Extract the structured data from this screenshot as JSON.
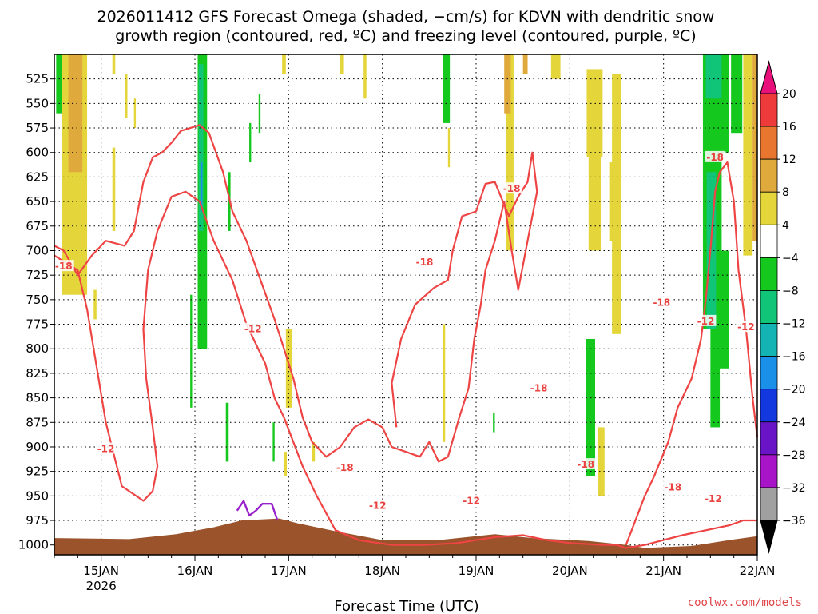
{
  "title": {
    "line1": "2026011412 GFS Forecast Omega (shaded, −cm/s) for KDVN with dendritic snow",
    "line2": "growth region (contoured, red, ºC) and freezing level (contoured, purple, ºC)"
  },
  "xlabel": "Forecast Time (UTC)",
  "credit": "coolwx.com/models",
  "colors": {
    "dgz_contour": "#ee4444",
    "freezing_contour": "#9922cc",
    "terrain": "#9a532a",
    "grid": "#000000"
  },
  "chart_data": {
    "type": "heatmap",
    "title": "2026011412 GFS Forecast Omega (shaded, −cm/s) for KDVN with dendritic snow growth region (contoured, red, ºC) and freezing level (contoured, purple, ºC)",
    "xlabel": "Forecast Time (UTC)",
    "ylabel": "",
    "x_range_days": [
      14.5,
      22.0
    ],
    "y_range_hpa": [
      500,
      1010
    ],
    "y_scale": "linear (pressure, inverted)",
    "grid": true,
    "x_ticks": [
      {
        "value": 15,
        "label": "15JAN",
        "sublabel": "2026"
      },
      {
        "value": 16,
        "label": "16JAN"
      },
      {
        "value": 17,
        "label": "17JAN"
      },
      {
        "value": 18,
        "label": "18JAN"
      },
      {
        "value": 19,
        "label": "19JAN"
      },
      {
        "value": 20,
        "label": "20JAN"
      },
      {
        "value": 21,
        "label": "21JAN"
      },
      {
        "value": 22,
        "label": "22JAN"
      }
    ],
    "y_ticks": [
      525,
      550,
      575,
      600,
      625,
      650,
      675,
      700,
      725,
      750,
      775,
      800,
      825,
      850,
      875,
      900,
      925,
      950,
      975,
      1000
    ],
    "colorbar": {
      "labels": [
        "20",
        "16",
        "12",
        "8",
        "4",
        "−4",
        "−8",
        "−12",
        "−16",
        "−20",
        "−24",
        "−28",
        "−32",
        "−36"
      ],
      "bins": [
        {
          "low": 20,
          "high": 24,
          "color": "#e8107a"
        },
        {
          "low": 16,
          "high": 20,
          "color": "#ee3a3a"
        },
        {
          "low": 12,
          "high": 16,
          "color": "#e8762e"
        },
        {
          "low": 8,
          "high": 12,
          "color": "#e0a93c"
        },
        {
          "low": 4,
          "high": 8,
          "color": "#e4d63a"
        },
        {
          "low": -4,
          "high": 4,
          "color": "#ffffff"
        },
        {
          "low": -8,
          "high": -4,
          "color": "#14c81e"
        },
        {
          "low": -12,
          "high": -8,
          "color": "#10c478"
        },
        {
          "low": -16,
          "high": -12,
          "color": "#14b4b4"
        },
        {
          "low": -20,
          "high": -16,
          "color": "#1a90e8"
        },
        {
          "low": -24,
          "high": -20,
          "color": "#1438e0"
        },
        {
          "low": -28,
          "high": -24,
          "color": "#6a14c8"
        },
        {
          "low": -32,
          "high": -28,
          "color": "#a814c8"
        },
        {
          "low": -36,
          "high": -32,
          "color": "#a0a0a0"
        },
        {
          "low": -40,
          "high": -36,
          "color": "#000000"
        }
      ]
    },
    "omega_cells": [
      {
        "t0": 14.52,
        "t1": 14.6,
        "p0": 500,
        "p1": 560,
        "value": -6
      },
      {
        "t0": 14.58,
        "t1": 14.85,
        "p0": 500,
        "p1": 745,
        "value": 5
      },
      {
        "t0": 14.65,
        "t1": 14.8,
        "p0": 500,
        "p1": 620,
        "value": 9
      },
      {
        "t0": 15.12,
        "t1": 15.15,
        "p0": 500,
        "p1": 520,
        "value": 5
      },
      {
        "t0": 15.12,
        "t1": 15.15,
        "p0": 595,
        "p1": 680,
        "value": 5
      },
      {
        "t0": 14.92,
        "t1": 14.95,
        "p0": 740,
        "p1": 770,
        "value": 5
      },
      {
        "t0": 15.25,
        "t1": 15.28,
        "p0": 520,
        "p1": 565,
        "value": 5
      },
      {
        "t0": 15.95,
        "t1": 15.97,
        "p0": 745,
        "p1": 860,
        "value": -6
      },
      {
        "t0": 16.03,
        "t1": 16.13,
        "p0": 500,
        "p1": 800,
        "value": -6
      },
      {
        "t0": 16.04,
        "t1": 16.09,
        "p0": 510,
        "p1": 680,
        "value": -12
      },
      {
        "t0": 16.06,
        "t1": 16.08,
        "p0": 610,
        "p1": 660,
        "value": -18
      },
      {
        "t0": 16.35,
        "t1": 16.38,
        "p0": 620,
        "p1": 680,
        "value": -6
      },
      {
        "t0": 16.33,
        "t1": 16.36,
        "p0": 855,
        "p1": 915,
        "value": -6
      },
      {
        "t0": 15.35,
        "t1": 15.37,
        "p0": 545,
        "p1": 575,
        "value": 5
      },
      {
        "t0": 16.68,
        "t1": 16.7,
        "p0": 540,
        "p1": 580,
        "value": -6
      },
      {
        "t0": 16.58,
        "t1": 16.6,
        "p0": 570,
        "p1": 610,
        "value": -6
      },
      {
        "t0": 16.93,
        "t1": 16.97,
        "p0": 500,
        "p1": 520,
        "value": 5
      },
      {
        "t0": 16.97,
        "t1": 17.04,
        "p0": 780,
        "p1": 860,
        "value": 5
      },
      {
        "t0": 16.83,
        "t1": 16.85,
        "p0": 875,
        "p1": 915,
        "value": -6
      },
      {
        "t0": 16.95,
        "t1": 16.98,
        "p0": 905,
        "p1": 930,
        "value": 5
      },
      {
        "t0": 17.25,
        "t1": 17.28,
        "p0": 895,
        "p1": 915,
        "value": 5
      },
      {
        "t0": 17.55,
        "t1": 17.59,
        "p0": 500,
        "p1": 520,
        "value": 5
      },
      {
        "t0": 17.8,
        "t1": 17.83,
        "p0": 500,
        "p1": 545,
        "value": 5
      },
      {
        "t0": 18.65,
        "t1": 18.72,
        "p0": 500,
        "p1": 570,
        "value": -6
      },
      {
        "t0": 18.65,
        "t1": 18.67,
        "p0": 775,
        "p1": 895,
        "value": 5
      },
      {
        "t0": 18.7,
        "t1": 18.72,
        "p0": 575,
        "p1": 615,
        "value": 5
      },
      {
        "t0": 19.32,
        "t1": 19.4,
        "p0": 500,
        "p1": 700,
        "value": 5
      },
      {
        "t0": 19.3,
        "t1": 19.37,
        "p0": 500,
        "p1": 560,
        "value": 9
      },
      {
        "t0": 19.5,
        "t1": 19.55,
        "p0": 500,
        "p1": 520,
        "value": 9
      },
      {
        "t0": 19.18,
        "t1": 19.2,
        "p0": 865,
        "p1": 885,
        "value": -6
      },
      {
        "t0": 19.8,
        "t1": 19.9,
        "p0": 500,
        "p1": 525,
        "value": 5
      },
      {
        "t0": 20.18,
        "t1": 20.35,
        "p0": 515,
        "p1": 605,
        "value": 5
      },
      {
        "t0": 20.2,
        "t1": 20.33,
        "p0": 605,
        "p1": 700,
        "value": 5
      },
      {
        "t0": 20.45,
        "t1": 20.55,
        "p0": 520,
        "p1": 610,
        "value": 5
      },
      {
        "t0": 20.42,
        "t1": 20.55,
        "p0": 610,
        "p1": 690,
        "value": 5
      },
      {
        "t0": 20.45,
        "t1": 20.55,
        "p0": 690,
        "p1": 785,
        "value": 5
      },
      {
        "t0": 20.17,
        "t1": 20.27,
        "p0": 790,
        "p1": 930,
        "value": -6
      },
      {
        "t0": 20.3,
        "t1": 20.37,
        "p0": 880,
        "p1": 950,
        "value": 5
      },
      {
        "t0": 21.42,
        "t1": 21.7,
        "p0": 500,
        "p1": 600,
        "value": -6
      },
      {
        "t0": 21.45,
        "t1": 21.62,
        "p0": 500,
        "p1": 545,
        "value": -10
      },
      {
        "t0": 21.42,
        "t1": 21.62,
        "p0": 600,
        "p1": 780,
        "value": -6
      },
      {
        "t0": 21.46,
        "t1": 21.56,
        "p0": 620,
        "p1": 780,
        "value": -10
      },
      {
        "t0": 21.5,
        "t1": 21.6,
        "p0": 780,
        "p1": 880,
        "value": -6
      },
      {
        "t0": 21.58,
        "t1": 21.7,
        "p0": 700,
        "p1": 820,
        "value": -6
      },
      {
        "t0": 21.72,
        "t1": 21.84,
        "p0": 500,
        "p1": 580,
        "value": -6
      },
      {
        "t0": 21.85,
        "t1": 21.95,
        "p0": 500,
        "p1": 705,
        "value": 5
      },
      {
        "t0": 21.95,
        "t1": 22.0,
        "p0": 500,
        "p1": 690,
        "value": 9
      }
    ],
    "dgz_contours": [
      {
        "label": "-12",
        "points": [
          [
            14.5,
            705
          ],
          [
            14.75,
            720
          ],
          [
            14.85,
            760
          ],
          [
            15.05,
            875
          ],
          [
            15.22,
            940
          ],
          [
            15.45,
            955
          ],
          [
            15.55,
            945
          ],
          [
            15.6,
            920
          ],
          [
            15.55,
            880
          ],
          [
            15.48,
            830
          ],
          [
            15.45,
            780
          ],
          [
            15.5,
            720
          ],
          [
            15.6,
            680
          ],
          [
            15.75,
            645
          ],
          [
            15.9,
            640
          ],
          [
            16.05,
            650
          ],
          [
            16.2,
            690
          ],
          [
            16.4,
            730
          ],
          [
            16.55,
            775
          ],
          [
            16.75,
            815
          ],
          [
            16.85,
            850
          ],
          [
            16.95,
            870
          ],
          [
            17.05,
            895
          ],
          [
            17.15,
            920
          ],
          [
            17.3,
            950
          ],
          [
            17.5,
            985
          ],
          [
            17.75,
            995
          ],
          [
            18.1,
            1000
          ],
          [
            18.45,
            1000
          ],
          [
            18.8,
            998
          ],
          [
            19.2,
            992
          ],
          [
            19.5,
            990
          ],
          [
            19.75,
            995
          ],
          [
            20.0,
            998
          ],
          [
            20.35,
            1000
          ],
          [
            20.5,
            1000
          ],
          [
            20.6,
            1003
          ],
          [
            20.8,
            1000
          ],
          [
            21.0,
            995
          ],
          [
            21.2,
            990
          ],
          [
            21.45,
            985
          ],
          [
            21.7,
            980
          ],
          [
            21.85,
            975
          ],
          [
            22.0,
            975
          ]
        ]
      },
      {
        "label": "-18",
        "points": [
          [
            14.5,
            695
          ],
          [
            14.6,
            700
          ],
          [
            14.75,
            725
          ],
          [
            14.9,
            705
          ],
          [
            15.05,
            690
          ],
          [
            15.25,
            695
          ],
          [
            15.35,
            680
          ],
          [
            15.45,
            630
          ],
          [
            15.55,
            605
          ],
          [
            15.65,
            600
          ],
          [
            15.75,
            590
          ],
          [
            15.85,
            578
          ],
          [
            15.95,
            575
          ],
          [
            16.05,
            572
          ],
          [
            16.15,
            580
          ],
          [
            16.3,
            620
          ],
          [
            16.4,
            660
          ],
          [
            16.55,
            690
          ],
          [
            16.7,
            730
          ],
          [
            16.85,
            770
          ],
          [
            16.95,
            800
          ],
          [
            17.05,
            830
          ],
          [
            17.15,
            870
          ],
          [
            17.25,
            895
          ],
          [
            17.4,
            910
          ],
          [
            17.55,
            900
          ],
          [
            17.7,
            880
          ],
          [
            17.85,
            872
          ],
          [
            18.0,
            880
          ],
          [
            18.1,
            900
          ],
          [
            18.25,
            905
          ],
          [
            18.4,
            910
          ],
          [
            18.5,
            895
          ],
          [
            18.6,
            915
          ],
          [
            18.7,
            910
          ],
          [
            18.82,
            870
          ],
          [
            18.92,
            840
          ],
          [
            18.98,
            790
          ],
          [
            19.05,
            755
          ],
          [
            19.1,
            720
          ],
          [
            19.2,
            690
          ],
          [
            19.3,
            650
          ],
          [
            19.38,
            700
          ],
          [
            19.45,
            740
          ],
          [
            19.55,
            690
          ],
          [
            19.65,
            640
          ],
          [
            19.6,
            600
          ],
          [
            19.55,
            630
          ],
          [
            19.45,
            645
          ],
          [
            19.35,
            665
          ],
          [
            19.2,
            630
          ],
          [
            19.1,
            632
          ],
          [
            19.0,
            660
          ],
          [
            18.85,
            665
          ],
          [
            18.75,
            700
          ],
          [
            18.7,
            730
          ],
          [
            18.55,
            738
          ],
          [
            18.35,
            755
          ],
          [
            18.2,
            790
          ],
          [
            18.1,
            835
          ],
          [
            18.15,
            880
          ]
        ]
      },
      {
        "label": "-18",
        "points": [
          [
            20.6,
            1000
          ],
          [
            20.8,
            950
          ],
          [
            20.9,
            930
          ],
          [
            21.05,
            895
          ],
          [
            21.15,
            860
          ],
          [
            21.3,
            830
          ],
          [
            21.4,
            790
          ],
          [
            21.45,
            750
          ],
          [
            21.5,
            700
          ],
          [
            21.55,
            640
          ],
          [
            21.6,
            620
          ],
          [
            21.68,
            610
          ],
          [
            21.75,
            650
          ],
          [
            21.8,
            720
          ],
          [
            21.88,
            780
          ],
          [
            21.95,
            850
          ],
          [
            22.0,
            890
          ]
        ]
      }
    ],
    "freezing_contours": [
      {
        "label": "0",
        "points": [
          [
            16.45,
            965
          ],
          [
            16.52,
            955
          ],
          [
            16.58,
            970
          ],
          [
            16.65,
            965
          ],
          [
            16.72,
            958
          ],
          [
            16.82,
            958
          ],
          [
            16.88,
            975
          ]
        ]
      }
    ],
    "contour_labels": [
      {
        "text": "-18",
        "t": 14.6,
        "p": 716
      },
      {
        "text": "-12",
        "t": 15.05,
        "p": 902
      },
      {
        "text": "-12",
        "t": 16.62,
        "p": 780
      },
      {
        "text": "-18",
        "t": 17.6,
        "p": 921
      },
      {
        "text": "-12",
        "t": 17.95,
        "p": 960
      },
      {
        "text": "-18",
        "t": 18.45,
        "p": 712
      },
      {
        "text": "-12",
        "t": 18.95,
        "p": 955
      },
      {
        "text": "-18",
        "t": 19.38,
        "p": 637
      },
      {
        "text": "-18",
        "t": 19.67,
        "p": 840
      },
      {
        "text": "-18",
        "t": 20.17,
        "p": 918
      },
      {
        "text": "-18",
        "t": 20.98,
        "p": 753
      },
      {
        "text": "-18",
        "t": 21.1,
        "p": 941
      },
      {
        "text": "-18",
        "t": 21.55,
        "p": 605
      },
      {
        "text": "-12",
        "t": 21.45,
        "p": 772
      },
      {
        "text": "-12",
        "t": 21.88,
        "p": 778
      },
      {
        "text": "-12",
        "t": 21.53,
        "p": 953
      }
    ],
    "terrain_surface": [
      {
        "t": 14.5,
        "p": 993
      },
      {
        "t": 15.3,
        "p": 994
      },
      {
        "t": 15.8,
        "p": 989
      },
      {
        "t": 16.2,
        "p": 982
      },
      {
        "t": 16.5,
        "p": 975
      },
      {
        "t": 16.9,
        "p": 973
      },
      {
        "t": 17.1,
        "p": 978
      },
      {
        "t": 17.5,
        "p": 986
      },
      {
        "t": 18.0,
        "p": 995
      },
      {
        "t": 18.6,
        "p": 995
      },
      {
        "t": 19.2,
        "p": 989
      },
      {
        "t": 19.6,
        "p": 993
      },
      {
        "t": 20.2,
        "p": 996
      },
      {
        "t": 20.6,
        "p": 1000
      },
      {
        "t": 20.8,
        "p": 1003
      },
      {
        "t": 21.3,
        "p": 1001
      },
      {
        "t": 21.7,
        "p": 995
      },
      {
        "t": 22.0,
        "p": 991
      }
    ]
  }
}
